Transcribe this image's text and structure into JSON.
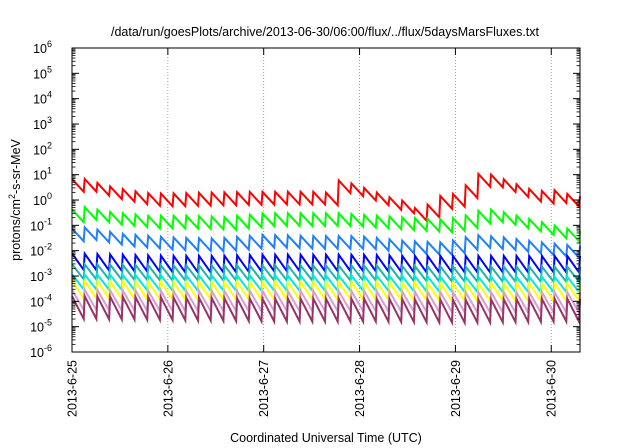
{
  "chart_data": {
    "type": "line",
    "title": "/data/run/goesPlots/archive/2013-06-30/06:00/flux/../flux/5daysMarsFluxes.txt",
    "xlabel": "Coordinated Universal Time (UTC)",
    "ylabel_parts": {
      "base": "protons/cm",
      "sup": "2",
      "rest": "-s-sr-MeV"
    },
    "xlim": [
      0,
      5.3
    ],
    "x_ticks": [
      {
        "x": 0,
        "label": "2013-6-25"
      },
      {
        "x": 1,
        "label": "2013-6-26"
      },
      {
        "x": 2,
        "label": "2013-6-27"
      },
      {
        "x": 3,
        "label": "2013-6-28"
      },
      {
        "x": 4,
        "label": "2013-6-29"
      },
      {
        "x": 5,
        "label": "2013-6-30"
      }
    ],
    "y_scale": "log",
    "ylim": [
      -6,
      6
    ],
    "y_ticks": [
      {
        "exp": 6,
        "label": "10",
        "sup": "6"
      },
      {
        "exp": 5,
        "label": "10",
        "sup": "5"
      },
      {
        "exp": 4,
        "label": "10",
        "sup": "4"
      },
      {
        "exp": 3,
        "label": "10",
        "sup": "3"
      },
      {
        "exp": 2,
        "label": "10",
        "sup": "2"
      },
      {
        "exp": 1,
        "label": "10",
        "sup": "1"
      },
      {
        "exp": 0,
        "label": "10",
        "sup": "0"
      },
      {
        "exp": -1,
        "label": "10",
        "sup": "-1"
      },
      {
        "exp": -2,
        "label": "10",
        "sup": "-2"
      },
      {
        "exp": -3,
        "label": "10",
        "sup": "-3"
      },
      {
        "exp": -4,
        "label": "10",
        "sup": "-4"
      },
      {
        "exp": -5,
        "label": "10",
        "sup": "-5"
      },
      {
        "exp": -6,
        "label": "10",
        "sup": "-6"
      }
    ],
    "grid": {
      "x": true,
      "y": false,
      "style": "dotted"
    },
    "series": [
      {
        "color": "#ff0000",
        "values": [
          [
            0,
            0.6
          ],
          [
            0.05,
            0.7
          ],
          [
            0.35,
            0.35
          ],
          [
            0.6,
            0.15
          ],
          [
            0.85,
            0.02
          ],
          [
            1.25,
            0.05
          ],
          [
            1.65,
            0.08
          ],
          [
            2.1,
            0.1
          ],
          [
            2.55,
            0.1
          ],
          [
            2.7,
            0.05
          ],
          [
            2.78,
            0.55
          ],
          [
            2.9,
            0.45
          ],
          [
            3.05,
            0.25
          ],
          [
            3.3,
            -0.1
          ],
          [
            3.55,
            -0.35
          ],
          [
            3.6,
            -0.7
          ],
          [
            3.75,
            -0.3
          ],
          [
            3.85,
            -0.05
          ],
          [
            4.05,
            0.05
          ],
          [
            4.1,
            0.35
          ],
          [
            4.2,
            0.4
          ],
          [
            4.25,
            0.9
          ],
          [
            4.4,
            0.75
          ],
          [
            4.6,
            0.45
          ],
          [
            4.85,
            0.1
          ],
          [
            5.0,
            0.2
          ],
          [
            5.2,
            -0.02
          ],
          [
            5.3,
            -0.08
          ]
        ],
        "teeth": 40,
        "tooth": 0.5
      },
      {
        "color": "#00ff00",
        "values": [
          [
            0,
            -0.6
          ],
          [
            0.05,
            -0.45
          ],
          [
            0.4,
            -0.7
          ],
          [
            0.8,
            -0.85
          ],
          [
            1.2,
            -0.85
          ],
          [
            1.6,
            -0.9
          ],
          [
            2.0,
            -0.75
          ],
          [
            2.4,
            -0.75
          ],
          [
            2.8,
            -0.75
          ],
          [
            3.2,
            -0.85
          ],
          [
            3.6,
            -0.95
          ],
          [
            3.9,
            -1.0
          ],
          [
            4.15,
            -0.8
          ],
          [
            4.3,
            -0.55
          ],
          [
            4.5,
            -0.7
          ],
          [
            4.8,
            -1.0
          ],
          [
            5.1,
            -1.3
          ],
          [
            5.3,
            -1.45
          ]
        ],
        "teeth": 40,
        "tooth": 0.5
      },
      {
        "color": "#1e7fff",
        "values": [
          [
            0,
            -1.35
          ],
          [
            0.05,
            -1.25
          ],
          [
            0.5,
            -1.55
          ],
          [
            1.0,
            -1.7
          ],
          [
            1.5,
            -1.75
          ],
          [
            2.0,
            -1.6
          ],
          [
            2.5,
            -1.65
          ],
          [
            3.0,
            -1.65
          ],
          [
            3.5,
            -1.85
          ],
          [
            3.9,
            -1.9
          ],
          [
            4.2,
            -1.6
          ],
          [
            4.5,
            -1.7
          ],
          [
            4.9,
            -1.9
          ],
          [
            5.3,
            -2.05
          ]
        ],
        "teeth": 40,
        "tooth": 0.5
      },
      {
        "color": "#0000ff",
        "values": [
          [
            0,
            -2.4
          ],
          [
            0.5,
            -2.45
          ],
          [
            1.0,
            -2.5
          ],
          [
            1.5,
            -2.5
          ],
          [
            2.0,
            -2.45
          ],
          [
            2.5,
            -2.45
          ],
          [
            3.0,
            -2.45
          ],
          [
            3.5,
            -2.5
          ],
          [
            4.0,
            -2.5
          ],
          [
            4.5,
            -2.5
          ],
          [
            5.0,
            -2.5
          ],
          [
            5.3,
            -2.5
          ]
        ],
        "teeth": 40,
        "tooth": 0.65
      },
      {
        "color": "#20b2aa",
        "values": [
          [
            0,
            -2.8
          ],
          [
            1.0,
            -2.85
          ],
          [
            2.0,
            -2.85
          ],
          [
            3.0,
            -2.85
          ],
          [
            4.0,
            -2.9
          ],
          [
            5.0,
            -2.9
          ],
          [
            5.3,
            -2.9
          ]
        ],
        "teeth": 40,
        "tooth": 0.6
      },
      {
        "color": "#00e8e0",
        "values": [
          [
            0,
            -3.2
          ],
          [
            1.0,
            -3.25
          ],
          [
            2.0,
            -3.25
          ],
          [
            3.0,
            -3.25
          ],
          [
            4.0,
            -3.3
          ],
          [
            5.0,
            -3.3
          ],
          [
            5.3,
            -3.3
          ]
        ],
        "teeth": 40,
        "tooth": 0.6
      },
      {
        "color": "#ffff00",
        "values": [
          [
            0,
            -3.5
          ],
          [
            1.0,
            -3.55
          ],
          [
            2.0,
            -3.55
          ],
          [
            3.0,
            -3.55
          ],
          [
            4.0,
            -3.6
          ],
          [
            5.0,
            -3.6
          ],
          [
            5.3,
            -3.6
          ]
        ],
        "teeth": 40,
        "tooth": 0.7
      },
      {
        "color": "#d2a0d2",
        "values": [
          [
            0,
            -3.9
          ],
          [
            1.0,
            -3.95
          ],
          [
            2.0,
            -3.95
          ],
          [
            3.0,
            -3.95
          ],
          [
            4.0,
            -4.0
          ],
          [
            5.0,
            -4.0
          ],
          [
            5.3,
            -4.0
          ]
        ],
        "teeth": 40,
        "tooth": 0.8
      },
      {
        "color": "#993366",
        "values": [
          [
            0,
            -4.2
          ],
          [
            1.0,
            -4.25
          ],
          [
            2.0,
            -4.3
          ],
          [
            3.0,
            -4.3
          ],
          [
            4.0,
            -4.35
          ],
          [
            5.0,
            -4.3
          ],
          [
            5.3,
            -4.3
          ]
        ],
        "teeth": 40,
        "tooth": 0.9
      }
    ]
  }
}
